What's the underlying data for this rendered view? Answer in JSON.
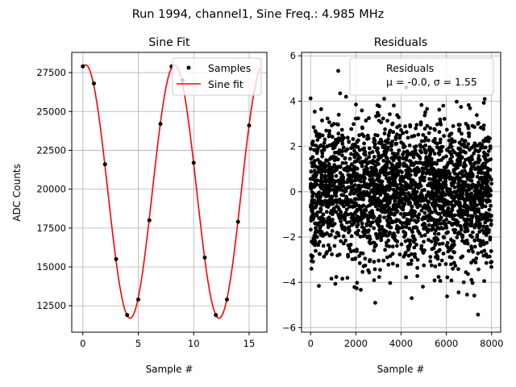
{
  "suptitle": "Run 1994, channel1, Sine Freq.: 4.985 MHz",
  "colors": {
    "fit": "#ff0000",
    "points": "#000000",
    "grid": "#b0b0b0"
  },
  "chart_data": [
    {
      "type": "scatter",
      "title": "Sine Fit",
      "xlabel": "Sample #",
      "ylabel": "ADC Counts",
      "xlim": [
        -1,
        16.6
      ],
      "ylim": [
        10800,
        28800
      ],
      "xticks": [
        0,
        5,
        10,
        15
      ],
      "yticks": [
        12500,
        15000,
        17500,
        20000,
        22500,
        25000,
        27500
      ],
      "grid": true,
      "legend": {
        "position": "top-right",
        "entries": [
          "Samples",
          "Sine fit"
        ]
      },
      "series": [
        {
          "name": "Samples",
          "kind": "points",
          "x": [
            0,
            1,
            2,
            3,
            4,
            5,
            6,
            7,
            8,
            9,
            10,
            11,
            12,
            13,
            14,
            15
          ],
          "y": [
            27900,
            26800,
            21600,
            15500,
            11900,
            12900,
            18000,
            24200,
            27900,
            27000,
            21700,
            15600,
            11900,
            12900,
            17900,
            24100
          ]
        },
        {
          "name": "Sine fit",
          "kind": "line",
          "amplitude": 8150,
          "offset": 19850,
          "period": 8.024,
          "peak_x": 0.25,
          "x_range": [
            0,
            16
          ]
        }
      ]
    },
    {
      "type": "scatter",
      "title": "Residuals",
      "xlabel": "Sample #",
      "ylabel": "",
      "xlim": [
        -400,
        8400
      ],
      "ylim": [
        -6.2,
        6.15
      ],
      "xticks": [
        0,
        2000,
        4000,
        6000,
        8000
      ],
      "yticks": [
        -6,
        -4,
        -2,
        0,
        2,
        4,
        6
      ],
      "grid": true,
      "legend": {
        "position": "top-right",
        "entries": [
          "Residuals",
          "μ = -0.0, σ = 1.55"
        ]
      },
      "series": [
        {
          "name": "Residuals",
          "n_points": 8000,
          "x_range": [
            0,
            8000
          ],
          "mean": -0.0,
          "std": 1.55,
          "min": -5.7,
          "max": 5.5
        }
      ]
    }
  ]
}
